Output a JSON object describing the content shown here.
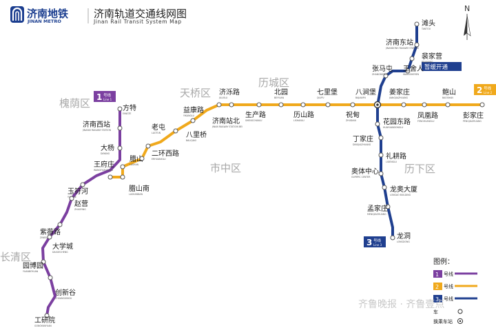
{
  "header": {
    "logo_cn": "济南地铁",
    "logo_en": "JINAN METRO",
    "title_cn": "济南轨道交通线网图",
    "title_en": "Jinan Rail Transit System Map"
  },
  "compass": {
    "north_label": "N"
  },
  "districts": [
    "槐荫区",
    "天桥区",
    "历城区",
    "市中区",
    "历下区",
    "长清区"
  ],
  "lines": [
    {
      "id": "line1",
      "badge_num": "1",
      "badge_cn": "号线",
      "badge_en": "Line 1",
      "color": "#7b3fa0"
    },
    {
      "id": "line2",
      "badge_num": "2",
      "badge_cn": "号线",
      "badge_en": "Line 2",
      "color": "#f0a91c"
    },
    {
      "id": "line3",
      "badge_num": "3",
      "badge_cn": "号线",
      "badge_en": "Line 3",
      "color": "#1f3f8f"
    }
  ],
  "line1_stations": [
    {
      "cn": "方特",
      "py": "FANGTE"
    },
    {
      "cn": "济南西站",
      "py": "JINANXI RAILWAY STATION"
    },
    {
      "cn": "大杨",
      "py": "DAYANG"
    },
    {
      "cn": "王府庄",
      "py": "WANGFUZHUANG"
    },
    {
      "cn": "玉符河",
      "py": "YUFUHE"
    },
    {
      "cn": "赵营",
      "py": "ZHAOYING"
    },
    {
      "cn": "紫薇路",
      "py": "ZIWEILU"
    },
    {
      "cn": "大学城",
      "py": "DAXUECHENG"
    },
    {
      "cn": "园博园",
      "py": "YUANBOYUAN"
    },
    {
      "cn": "创新谷",
      "py": "CHUANGXINGU"
    },
    {
      "cn": "工研院",
      "py": "GONGYANYUAN"
    }
  ],
  "line2_stations": [
    {
      "cn": "王府庄",
      "py": ""
    },
    {
      "cn": "腊山南",
      "py": "LASHANNAN"
    },
    {
      "cn": "腊山",
      "py": "LASHAN"
    },
    {
      "cn": "二环西路",
      "py": "ERHUANXILU"
    },
    {
      "cn": "老屯",
      "py": "LAOTUN"
    },
    {
      "cn": "八里桥",
      "py": "BALIQIAO"
    },
    {
      "cn": "益康路",
      "py": "YIKANGLU"
    },
    {
      "cn": "济南站北",
      "py": "JINAN RAILWAY STATION BEI"
    },
    {
      "cn": "济泺路",
      "py": "JILUOLU"
    },
    {
      "cn": "生产路",
      "py": "SHENGCHANLU"
    },
    {
      "cn": "北园",
      "py": "BEIYUAN"
    },
    {
      "cn": "历山路",
      "py": "LISHANLU"
    },
    {
      "cn": "七里堡",
      "py": "QILIPU"
    },
    {
      "cn": "祝甸",
      "py": "ZHUDIAN"
    },
    {
      "cn": "八涧堡",
      "py": "BAJIANPU"
    },
    {
      "cn": "姜家庄",
      "py": "JIANGJIAZHUANG"
    },
    {
      "cn": "凤凰路",
      "py": "FENGHUANGLU"
    },
    {
      "cn": "鲍山",
      "py": "BAOSHAN"
    },
    {
      "cn": "彭家庄",
      "py": "PENGJIAZHUANG"
    }
  ],
  "line3_stations": [
    {
      "cn": "滩头",
      "py": "TANTOU"
    },
    {
      "cn": "济南东站",
      "py": "JINANDONG RAILWAY STATION"
    },
    {
      "cn": "裴家营",
      "py": "PEIJIAYING"
    },
    {
      "cn": "王舍人",
      "py": "WANGSHEREN"
    },
    {
      "cn": "张马屯",
      "py": "ZHANGMATUN"
    },
    {
      "cn": "八涧堡",
      "py": ""
    },
    {
      "cn": "花园东路",
      "py": "HUAYUANDONGLU"
    },
    {
      "cn": "丁家庄",
      "py": "DINGJIAZHUANG"
    },
    {
      "cn": "礼耕路",
      "py": "LIGENGLU"
    },
    {
      "cn": "奥体中心",
      "py": "OLYMPIC CENTER"
    },
    {
      "cn": "龙奥大厦",
      "py": "LONGAO BUILDING"
    },
    {
      "cn": "孟家庄",
      "py": "MENGJIAZHUANG"
    },
    {
      "cn": "龙洞",
      "py": "LONGDONG"
    }
  ],
  "callout": {
    "text": "暂缓开通"
  },
  "legend": {
    "title": "图例：",
    "items": [
      {
        "num": "1",
        "label": "号线"
      },
      {
        "num": "2",
        "label": "号线"
      },
      {
        "num": "3",
        "label": "号线"
      }
    ],
    "footer_left": "车",
    "footer_right": "换乘车站"
  },
  "watermark": "齐鲁晚报 · 齐鲁壹点"
}
